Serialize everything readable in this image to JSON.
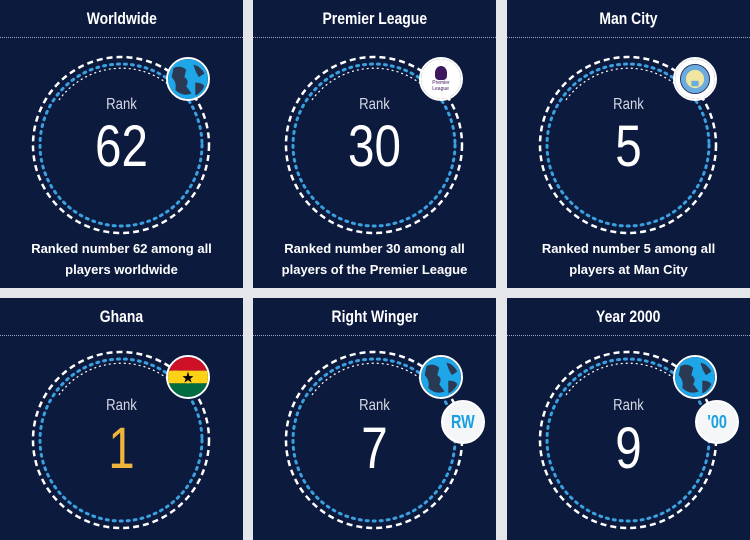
{
  "cards": [
    {
      "title": "Worldwide",
      "rank_label": "Rank",
      "rank": "62",
      "description": "Ranked number 62 among all players worldwide",
      "badge": "globe-icon"
    },
    {
      "title": "Premier League",
      "rank_label": "Rank",
      "rank": "30",
      "description": "Ranked number 30 among all players of the Premier League",
      "badge": "premier-league-logo"
    },
    {
      "title": "Man City",
      "rank_label": "Rank",
      "rank": "5",
      "description": "Ranked number 5 among all players at Man City",
      "badge": "man-city-crest"
    },
    {
      "title": "Ghana",
      "rank_label": "Rank",
      "rank": "1",
      "badge": "ghana-flag-icon"
    },
    {
      "title": "Right Winger",
      "rank_label": "Rank",
      "rank": "7",
      "badge": "globe-icon",
      "secondary_badge": "RW"
    },
    {
      "title": "Year 2000",
      "rank_label": "Rank",
      "rank": "9",
      "badge": "globe-icon",
      "secondary_badge": "'00"
    }
  ],
  "colors": {
    "background": "#0c1a3e",
    "accent": "#3aa0e0",
    "highlight_rank": "#f0b43c"
  }
}
